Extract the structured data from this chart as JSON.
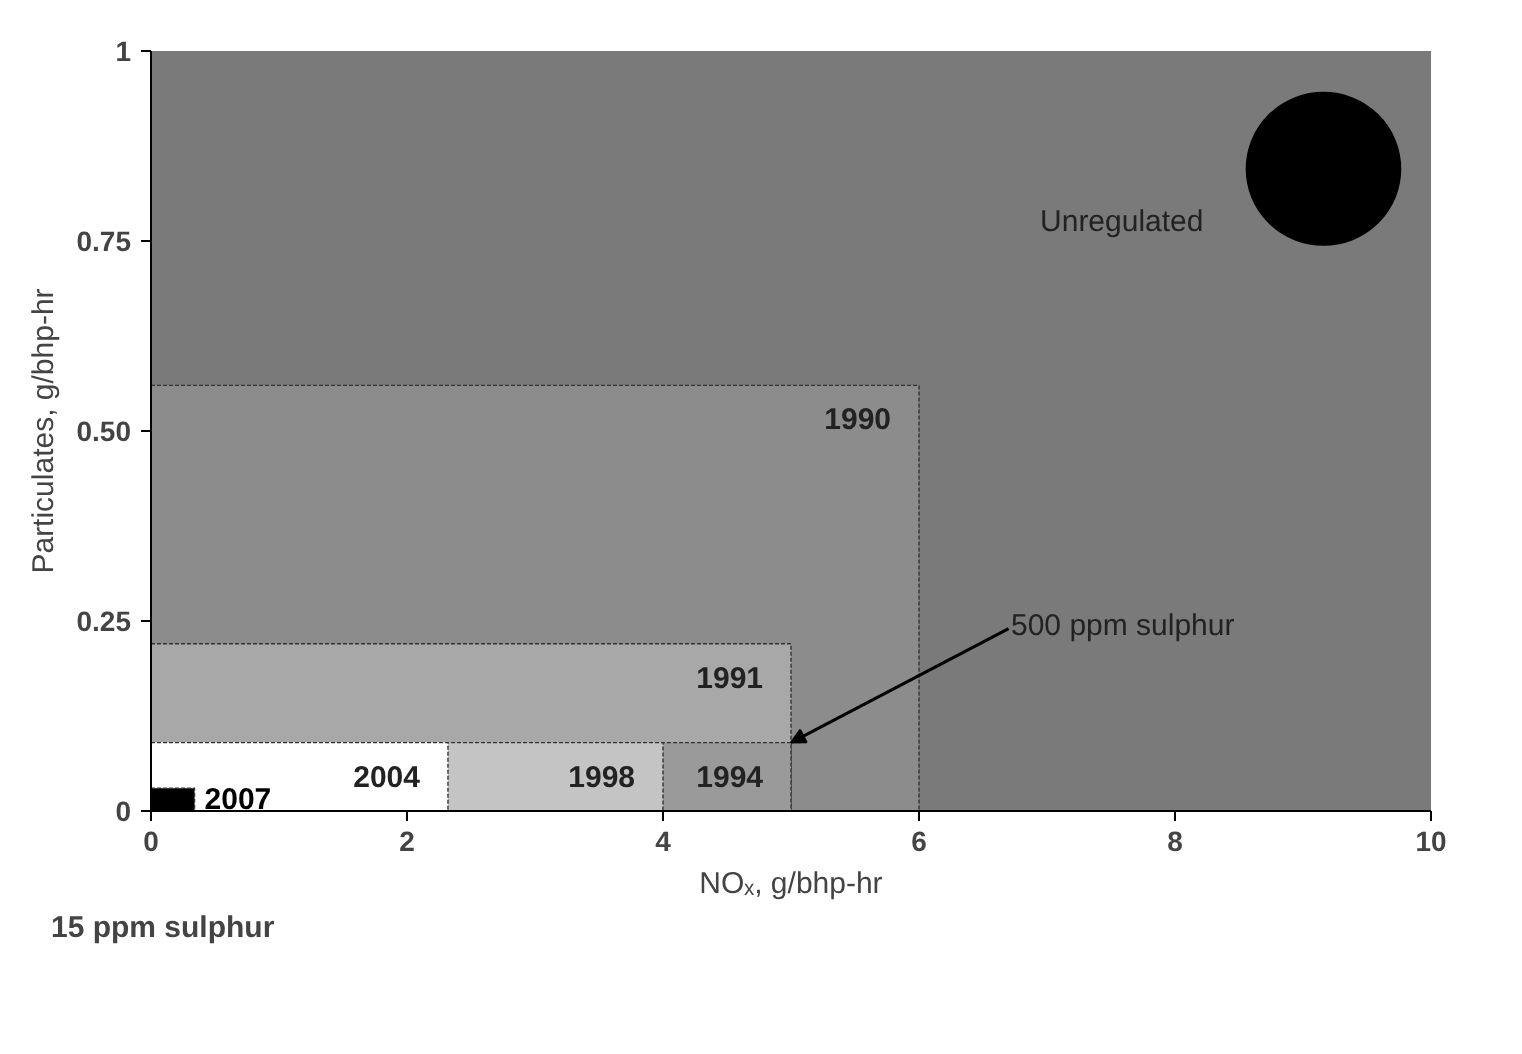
{
  "chart_data": {
    "type": "area",
    "xlabel": "NOₓ, g/bhp-hr",
    "ylabel": "Particulates, g/bhp-hr",
    "xlim": [
      0,
      10
    ],
    "xticks": [
      0,
      2,
      4,
      6,
      8,
      10
    ],
    "ylim": [
      0,
      1
    ],
    "yticks": [
      0,
      {
        "value": 0.25,
        "label": "0.25"
      },
      {
        "value": 0.5,
        "label": "0.50"
      },
      {
        "value": 0.75,
        "label": "0.75"
      },
      1
    ],
    "grid": false,
    "series": [
      {
        "name": "Unregulated",
        "type": "scatter",
        "color": "#000000",
        "x": [
          9.16
        ],
        "values": [
          0.845
        ]
      },
      {
        "name": "1990",
        "color": "#8c8c8c",
        "x": [
          0,
          6.0
        ],
        "values": [
          0.56,
          0.56
        ]
      },
      {
        "name": "1991",
        "color": "#a8a8a8",
        "x": [
          0,
          5.0
        ],
        "values": [
          0.22,
          0.22
        ]
      },
      {
        "name": "1994",
        "color": "#9a9a9a",
        "x": [
          0,
          5.0
        ],
        "values": [
          0.09,
          0.09
        ]
      },
      {
        "name": "1998",
        "color": "#c4c4c4",
        "x": [
          0,
          4.0
        ],
        "values": [
          0.09,
          0.09
        ]
      },
      {
        "name": "2004",
        "color": "#ffffff",
        "x": [
          0,
          2.32
        ],
        "values": [
          0.09,
          0.09
        ]
      },
      {
        "name": "2007",
        "color": "#000000",
        "x": [
          0,
          0.34
        ],
        "values": [
          0.03,
          0.03
        ]
      }
    ],
    "annotations": [
      {
        "text": "500 ppm sulphur",
        "x": 5.0,
        "y": 0.09
      },
      "15 ppm sulphur"
    ]
  }
}
